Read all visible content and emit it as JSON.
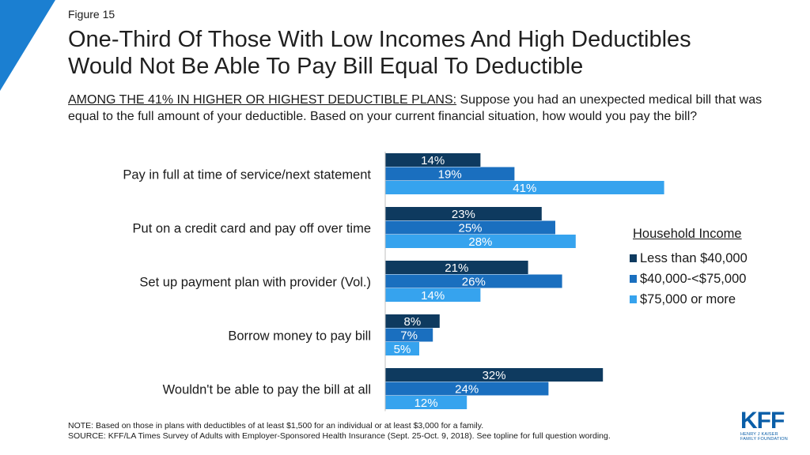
{
  "figure_label": "Figure 15",
  "title_lines": [
    "One-Third Of Those With Low Incomes And High Deductibles",
    "Would Not Be Able To Pay Bill Equal To Deductible"
  ],
  "question": {
    "prefix": "AMONG THE 41% IN HIGHER OR HIGHEST DEDUCTIBLE PLANS:",
    "text": " Suppose you had an unexpected medical bill that was equal to the full amount of your deductible. Based on your current financial situation, how would you pay the bill?"
  },
  "colors": {
    "less_than_40k": "#0e3a5f",
    "40k_to_75k": "#1a6fbf",
    "75k_or_more": "#36a3ee",
    "corner": "#1b7fd1"
  },
  "chart_data": {
    "type": "bar",
    "orientation": "horizontal",
    "categories": [
      "Pay in full at time of service/next statement",
      "Put on a credit card and pay off over time",
      "Set up payment plan with provider (Vol.)",
      "Borrow money to pay bill",
      "Wouldn't be able to pay the bill at all"
    ],
    "series": [
      {
        "name": "Less than $40,000",
        "values": [
          14,
          23,
          21,
          8,
          32
        ],
        "color": "#0e3a5f"
      },
      {
        "name": "$40,000-<$75,000",
        "values": [
          19,
          25,
          26,
          7,
          24
        ],
        "color": "#1a6fbf"
      },
      {
        "name": "$75,000 or more",
        "values": [
          41,
          28,
          14,
          5,
          12
        ],
        "color": "#36a3ee"
      }
    ],
    "value_suffix": "%",
    "xlim": [
      0,
      50
    ],
    "legend_title": "Household Income",
    "legend_position": "right",
    "grid": false
  },
  "notes": {
    "note": "NOTE: Based on those in plans with deductibles of at least $1,500 for an individual or at least $3,000 for a family.",
    "source": "SOURCE: KFF/LA Times Survey of Adults with Employer-Sponsored Health Insurance (Sept. 25-Oct. 9, 2018). See topline for full question wording."
  },
  "logo": {
    "mark": "KFF",
    "line1": "HENRY J KAISER",
    "line2": "FAMILY FOUNDATION"
  }
}
